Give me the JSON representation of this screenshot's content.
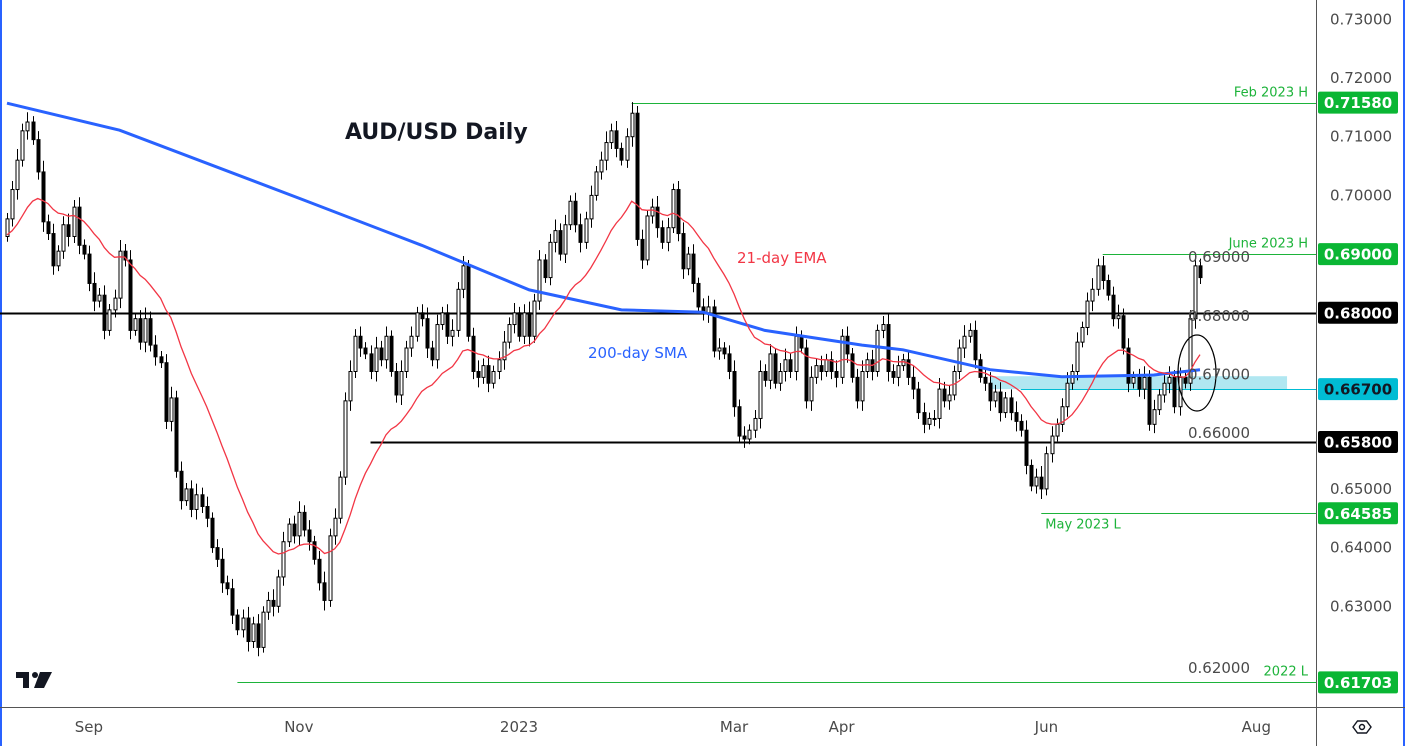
{
  "title": "AUD/USD Daily",
  "annotations": {
    "ema_label": "21-day EMA",
    "sma_label": "200-day SMA"
  },
  "colors": {
    "ema": "#f23645",
    "sma": "#2962ff",
    "level_green": "#1db33a",
    "support_zone": "#a8e4ef",
    "support_line": "#00bcd4",
    "black_level": "#000000"
  },
  "chart_data": {
    "type": "candlestick",
    "title": "AUD/USD Daily",
    "ylim": [
      0.612,
      0.7335
    ],
    "grid": false,
    "price_ticks": [
      "0.73000",
      "0.72000",
      "0.71000",
      "0.70000",
      "0.69000",
      "0.68000",
      "0.67000",
      "0.66000",
      "0.65000",
      "0.64000",
      "0.63000",
      "0.62000"
    ],
    "date_ticks": [
      {
        "label": "Sep",
        "index": 16
      },
      {
        "label": "Nov",
        "index": 57
      },
      {
        "label": "2023",
        "index": 100
      },
      {
        "label": "Mar",
        "index": 142
      },
      {
        "label": "Apr",
        "index": 163
      },
      {
        "label": "Jun",
        "index": 203
      },
      {
        "label": "Aug",
        "index": 244
      }
    ],
    "closes": [
      0.696,
      0.701,
      0.706,
      0.711,
      0.7125,
      0.7095,
      0.704,
      0.6955,
      0.6935,
      0.688,
      0.6905,
      0.695,
      0.693,
      0.698,
      0.6915,
      0.69,
      0.685,
      0.682,
      0.683,
      0.677,
      0.6805,
      0.6825,
      0.6905,
      0.689,
      0.677,
      0.679,
      0.675,
      0.679,
      0.6745,
      0.6725,
      0.6715,
      0.6615,
      0.6655,
      0.653,
      0.648,
      0.65,
      0.6465,
      0.649,
      0.647,
      0.645,
      0.64,
      0.638,
      0.634,
      0.633,
      0.6285,
      0.626,
      0.628,
      0.624,
      0.627,
      0.623,
      0.629,
      0.631,
      0.63,
      0.635,
      0.641,
      0.644,
      0.642,
      0.646,
      0.643,
      0.641,
      0.638,
      0.634,
      0.631,
      0.642,
      0.645,
      0.652,
      0.665,
      0.67,
      0.676,
      0.674,
      0.673,
      0.67,
      0.674,
      0.672,
      0.676,
      0.67,
      0.666,
      0.67,
      0.674,
      0.676,
      0.68,
      0.679,
      0.674,
      0.672,
      0.678,
      0.68,
      0.676,
      0.677,
      0.684,
      0.688,
      0.676,
      0.67,
      0.669,
      0.671,
      0.668,
      0.67,
      0.672,
      0.675,
      0.678,
      0.68,
      0.676,
      0.68,
      0.676,
      0.682,
      0.689,
      0.686,
      0.692,
      0.694,
      0.69,
      0.695,
      0.699,
      0.695,
      0.692,
      0.696,
      0.7,
      0.704,
      0.706,
      0.709,
      0.711,
      0.708,
      0.706,
      0.71,
      0.714,
      0.6925,
      0.689,
      0.6965,
      0.698,
      0.6945,
      0.692,
      0.6945,
      0.701,
      0.6935,
      0.6875,
      0.69,
      0.685,
      0.681,
      0.68,
      0.681,
      0.6735,
      0.674,
      0.673,
      0.67,
      0.664,
      0.659,
      0.6585,
      0.66,
      0.662,
      0.67,
      0.6685,
      0.673,
      0.668,
      0.67,
      0.672,
      0.67,
      0.676,
      0.674,
      0.665,
      0.669,
      0.671,
      0.67,
      0.672,
      0.67,
      0.669,
      0.676,
      0.673,
      0.669,
      0.665,
      0.67,
      0.672,
      0.67,
      0.677,
      0.678,
      0.67,
      0.669,
      0.671,
      0.672,
      0.669,
      0.667,
      0.663,
      0.661,
      0.662,
      0.662,
      0.667,
      0.665,
      0.666,
      0.67,
      0.674,
      0.676,
      0.677,
      0.672,
      0.669,
      0.668,
      0.665,
      0.6665,
      0.663,
      0.6655,
      0.663,
      0.6615,
      0.66,
      0.654,
      0.6505,
      0.652,
      0.65,
      0.656,
      0.659,
      0.661,
      0.664,
      0.668,
      0.67,
      0.675,
      0.6775,
      0.682,
      0.684,
      0.688,
      0.6855,
      0.683,
      0.679,
      0.6795,
      0.674,
      0.668,
      0.669,
      0.667,
      0.669,
      0.661,
      0.6635,
      0.666,
      0.668,
      0.669,
      0.664,
      0.669,
      0.668,
      0.679,
      0.688,
      0.686
    ],
    "sma200": [
      [
        0,
        0.7157
      ],
      [
        22,
        0.7111
      ],
      [
        58,
        0.6992
      ],
      [
        81,
        0.6915
      ],
      [
        102,
        0.6839
      ],
      [
        120,
        0.6805
      ],
      [
        136,
        0.6801
      ],
      [
        148,
        0.677
      ],
      [
        167,
        0.6745
      ],
      [
        175,
        0.6737
      ],
      [
        192,
        0.6703
      ],
      [
        206,
        0.6691
      ],
      [
        224,
        0.6694
      ],
      [
        233,
        0.6703
      ]
    ],
    "ema_period": 21,
    "levels": [
      {
        "price": 0.7158,
        "badge": "0.71580",
        "label": "Feb 2023 H",
        "color": "#1db33a",
        "from_index": 122,
        "label_pos": "above"
      },
      {
        "price": 0.69,
        "badge": "0.69000",
        "label": "June 2023 H",
        "color": "#1db33a",
        "from_index": 214,
        "label_pos": "above"
      },
      {
        "price": 0.68,
        "badge": "0.68000",
        "label": "",
        "color": "#000000",
        "from_index": -2,
        "label_pos": "none"
      },
      {
        "price": 0.667,
        "badge": "0.66700",
        "label": "",
        "color": "#00bcd4",
        "from_index": 198,
        "label_pos": "none"
      },
      {
        "price": 0.658,
        "badge": "0.65800",
        "label": "",
        "color": "#000000",
        "from_index": 71,
        "label_pos": "none"
      },
      {
        "price": 0.64585,
        "badge": "0.64585",
        "label": "May 2023 L",
        "color": "#1db33a",
        "from_index": 202,
        "label_pos": "below"
      },
      {
        "price": 0.61703,
        "badge": "0.61703",
        "label": "2022 L",
        "color": "#1db33a",
        "from_index": 45,
        "label_pos": "above"
      }
    ],
    "support_zone": {
      "from_price": 0.667,
      "to_price": 0.6692,
      "from_index": 192,
      "to_index": 250
    }
  },
  "toolbar": {
    "settings_icon": "gear-icon",
    "logo": "TV"
  }
}
